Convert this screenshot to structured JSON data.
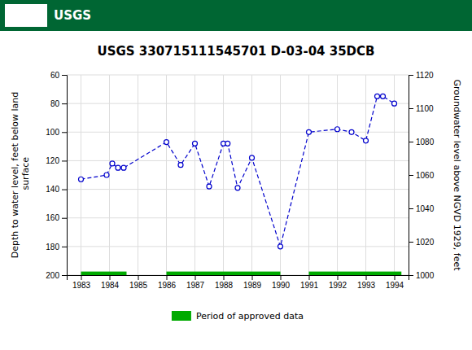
{
  "chart_data": {
    "type": "line",
    "title": "USGS 330715111545701 D-03-04 35DCB",
    "annotations": [
      "USGS"
    ],
    "y_label": "Depth to water level, feet below land\n surface",
    "y2_label": "Groundwater level above NGVD 1929, feet",
    "x": [
      1983.0,
      1983.9,
      1984.1,
      1984.3,
      1984.5,
      1986.0,
      1986.5,
      1987.0,
      1987.5,
      1988.0,
      1988.15,
      1988.5,
      1989.0,
      1990.0,
      1991.0,
      1992.0,
      1992.5,
      1993.0,
      1993.4,
      1993.6,
      1994.0
    ],
    "series": [
      {
        "color": "#0000CC",
        "marker": "circle",
        "line_style": "dashed",
        "values": [
          133,
          130,
          122,
          125,
          125,
          107,
          123,
          108,
          138,
          108,
          108,
          139,
          118,
          180,
          100,
          98,
          100,
          106,
          75,
          75,
          80
        ]
      }
    ],
    "approved": {
      "name": "Period of approved data",
      "color": "#00AA00",
      "y_range": [
        197.5,
        200.0
      ],
      "periods": [
        [
          1983.0,
          1984.6
        ],
        [
          1986.0,
          1990.0
        ],
        [
          1991.0,
          1994.25
        ]
      ]
    },
    "xlim": [
      1982.5,
      1994.5
    ],
    "xticks": [
      1983,
      1984,
      1985,
      1986,
      1987,
      1988,
      1989,
      1990,
      1991,
      1992,
      1993,
      1994
    ],
    "ylim": [
      200,
      60
    ],
    "yticks": [
      60,
      80,
      100,
      120,
      140,
      160,
      180,
      200
    ],
    "y2lim": [
      1000,
      1120
    ],
    "y2ticks": [
      1000,
      1020,
      1040,
      1060,
      1080,
      1100,
      1120
    ],
    "grid": true,
    "legend": "bottom"
  }
}
